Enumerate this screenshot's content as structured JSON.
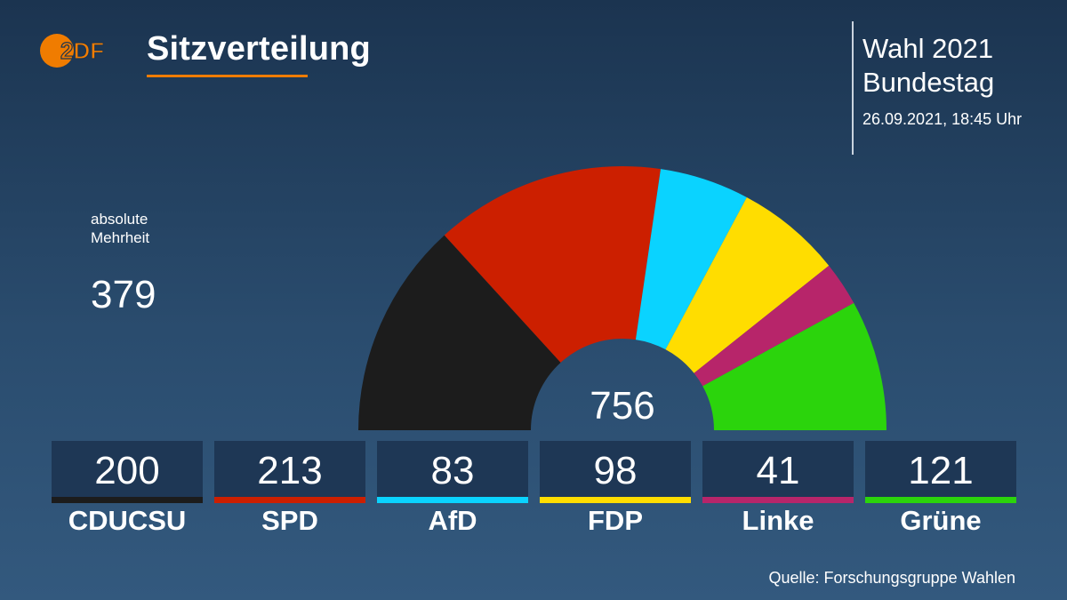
{
  "header": {
    "logo_text": "2DF",
    "title": "Sitzverteilung",
    "election_line1": "Wahl 2021",
    "election_line2": "Bundestag",
    "datetime": "26.09.2021, 18:45 Uhr"
  },
  "majority": {
    "label_line1": "absolute",
    "label_line2": "Mehrheit",
    "value": "379"
  },
  "source": "Quelle: Forschungsgruppe Wahlen",
  "colors": {
    "accent": "#f07c00",
    "background": "#1b3450",
    "tile": "#1e3755"
  },
  "chart_data": {
    "type": "pie",
    "variant": "half-donut",
    "total": 756,
    "total_label": "756",
    "categories": [
      "CDUCSU",
      "SPD",
      "AfD",
      "FDP",
      "Linke",
      "Grüne"
    ],
    "values": [
      200,
      213,
      83,
      98,
      41,
      121
    ],
    "value_labels": [
      "200",
      "213",
      "83",
      "98",
      "41",
      "121"
    ],
    "colors": [
      "#1c1c1c",
      "#cc1f00",
      "#0ad3ff",
      "#ffdd00",
      "#b7256a",
      "#2bd40c"
    ]
  }
}
